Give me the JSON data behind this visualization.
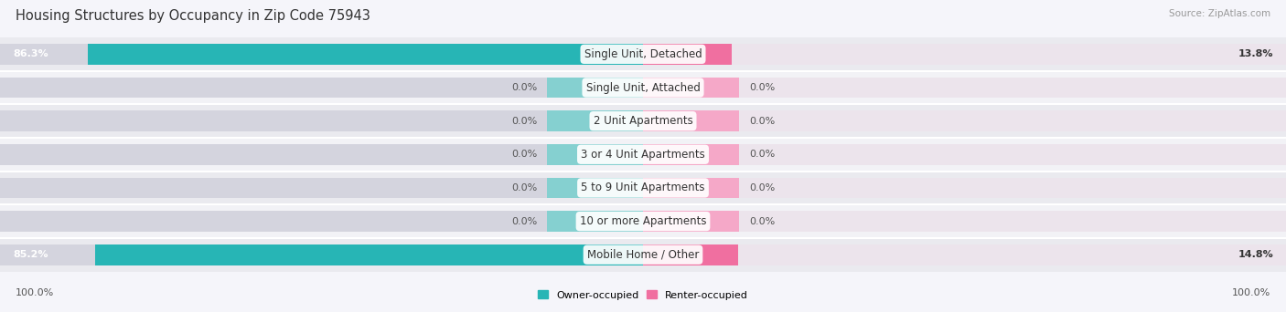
{
  "title": "Housing Structures by Occupancy in Zip Code 75943",
  "source": "Source: ZipAtlas.com",
  "categories": [
    "Single Unit, Detached",
    "Single Unit, Attached",
    "2 Unit Apartments",
    "3 or 4 Unit Apartments",
    "5 to 9 Unit Apartments",
    "10 or more Apartments",
    "Mobile Home / Other"
  ],
  "owner_pct": [
    86.3,
    0.0,
    0.0,
    0.0,
    0.0,
    0.0,
    85.2
  ],
  "renter_pct": [
    13.8,
    0.0,
    0.0,
    0.0,
    0.0,
    0.0,
    14.8
  ],
  "owner_color": "#27b5b5",
  "renter_color": "#f06fa0",
  "owner_stub_color": "#85d0d0",
  "renter_stub_color": "#f5a8c8",
  "title_fontsize": 10.5,
  "label_fontsize": 8.5,
  "pct_fontsize": 8.0,
  "source_fontsize": 7.5,
  "axis_label_fontsize": 8.0,
  "max_val": 100.0,
  "stub_val": 15.0,
  "bar_height": 0.62,
  "row_bg_odd": "#eaeaef",
  "row_bg_even": "#f2f2f6",
  "fig_bg": "#f5f5fa",
  "figsize": [
    14.06,
    3.42
  ],
  "dpi": 100
}
